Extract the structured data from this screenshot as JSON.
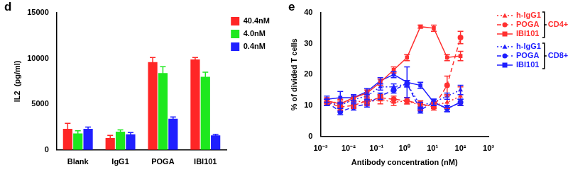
{
  "chart_data": [
    {
      "panel": "d",
      "type": "bar",
      "categories": [
        "Blank",
        "IgG1",
        "POGA",
        "IBI101"
      ],
      "y_label": "IL2  (pg/ml)",
      "ylim": [
        0,
        15000
      ],
      "yticks": [
        0,
        5000,
        10000,
        15000
      ],
      "grid": false,
      "legend": "upper right",
      "series": [
        {
          "name": "40.4nM",
          "color": "#ff2626",
          "values": [
            2300,
            1300,
            9600,
            9900
          ],
          "errors": [
            600,
            300,
            500,
            200
          ]
        },
        {
          "name": "4.0nM",
          "color": "#1ee81e",
          "values": [
            1800,
            2000,
            8400,
            8000
          ],
          "errors": [
            300,
            200,
            700,
            500
          ]
        },
        {
          "name": "0.4nM",
          "color": "#1f1fff",
          "values": [
            2300,
            1700,
            3400,
            1600
          ],
          "errors": [
            200,
            200,
            200,
            100
          ]
        }
      ]
    },
    {
      "panel": "e",
      "type": "line",
      "x_label": "Antibody concentration (nM)",
      "y_label": "% of divided T cells",
      "log": "x",
      "xlim": [
        0.001,
        1000
      ],
      "xticks": [
        {
          "value": 0.001,
          "label": "10⁻³"
        },
        {
          "value": 0.01,
          "label": "10⁻²"
        },
        {
          "value": 0.1,
          "label": "10⁻¹"
        },
        {
          "value": 1,
          "label": "10⁰"
        },
        {
          "value": 10,
          "label": "10¹"
        },
        {
          "value": 100,
          "label": "10²"
        },
        {
          "value": 1000,
          "label": "10³"
        }
      ],
      "ylim": [
        0,
        40
      ],
      "yticks": [
        0,
        10,
        20,
        30,
        40
      ],
      "grid": false,
      "legend": "right",
      "x": [
        0.00169,
        0.00508,
        0.0152,
        0.0457,
        0.137,
        0.412,
        1.23,
        3.7,
        11.1,
        33.3,
        100
      ],
      "series": [
        {
          "name": "h-IgG1",
          "group": "CD4+",
          "color": "#ff3030",
          "marker": "triangle",
          "line_style": "dotted",
          "values": [
            11,
            11,
            11.5,
            11,
            12,
            11,
            11.5,
            10,
            10,
            11,
            13
          ],
          "errors": [
            1,
            1,
            1,
            1,
            1.5,
            1,
            1,
            1.5,
            1,
            2,
            3
          ]
        },
        {
          "name": "POGA",
          "group": "CD4+",
          "color": "#ff3030",
          "marker": "circle",
          "line_style": "dashed",
          "values": [
            11,
            9.5,
            10,
            11.5,
            12.5,
            12,
            11.5,
            10.5,
            9.5,
            16.5,
            32
          ],
          "errors": [
            1,
            1,
            1,
            1,
            1,
            1,
            1,
            1,
            1,
            3,
            2
          ]
        },
        {
          "name": "IBI101",
          "group": "CD4+",
          "color": "#ff3030",
          "marker": "square",
          "line_style": "solid",
          "values": [
            11.5,
            10.5,
            12.5,
            14,
            17.5,
            21.5,
            25.5,
            35.5,
            35,
            25.5,
            26
          ],
          "errors": [
            1,
            1,
            1,
            1,
            1,
            1,
            1,
            0.5,
            1,
            1,
            1.5
          ]
        },
        {
          "name": "h-IgG1",
          "group": "CD8+",
          "color": "#1f1fff",
          "marker": "triangle",
          "line_style": "dotted",
          "values": [
            11,
            10,
            12,
            13,
            16,
            16,
            17,
            10,
            11,
            13,
            15
          ],
          "errors": [
            1,
            1,
            1,
            1,
            1,
            1,
            1,
            1,
            1,
            1,
            1.5
          ]
        },
        {
          "name": "POGA",
          "group": "CD8+",
          "color": "#1f1fff",
          "marker": "circle",
          "line_style": "dashed",
          "values": [
            11,
            8,
            9.5,
            10.5,
            13,
            15,
            17,
            8.5,
            11,
            9,
            11
          ],
          "errors": [
            1,
            1,
            1,
            1,
            1,
            1,
            1,
            1,
            1,
            1,
            1
          ]
        },
        {
          "name": "IBI101",
          "group": "CD8+",
          "color": "#1f1fff",
          "marker": "square",
          "line_style": "solid",
          "values": [
            12,
            12.5,
            12.5,
            14.5,
            18,
            20,
            17.5,
            16.5,
            11,
            9,
            11
          ],
          "errors": [
            1,
            2,
            1,
            1,
            1,
            1,
            5,
            1,
            1,
            1,
            1
          ]
        }
      ]
    }
  ]
}
